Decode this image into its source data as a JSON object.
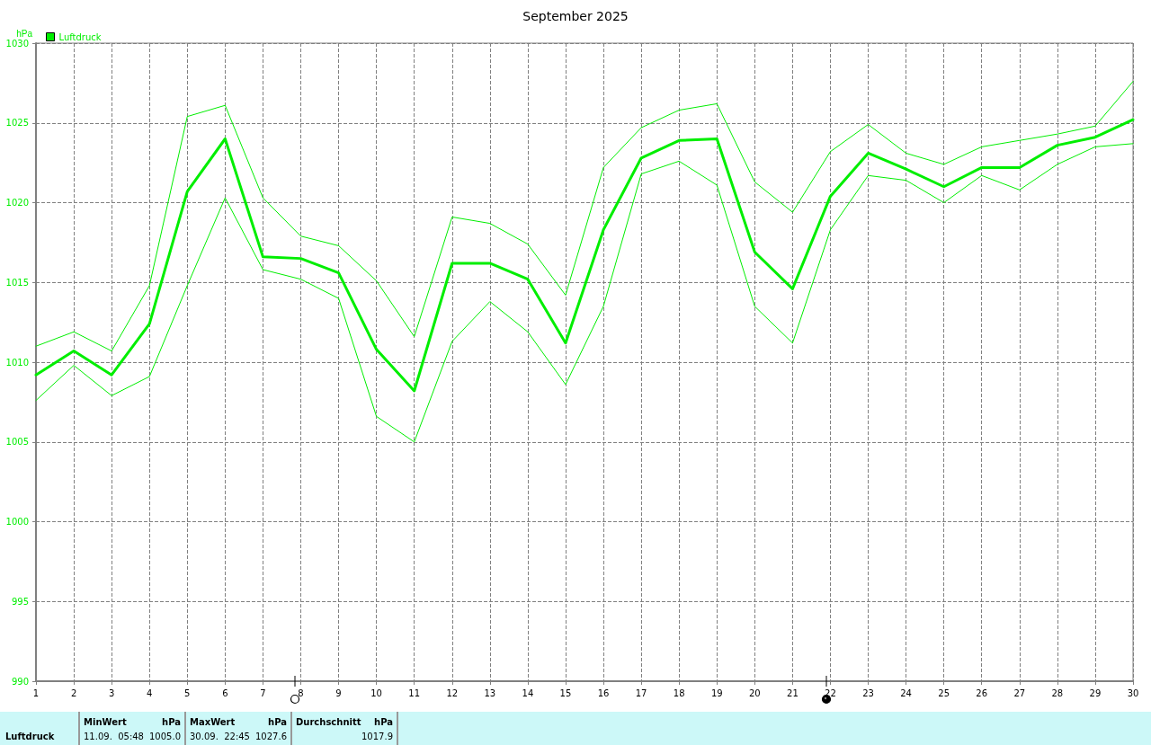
{
  "chart_data": {
    "type": "line",
    "title": "September 2025",
    "ylabel": "hPa",
    "x": [
      1,
      2,
      3,
      4,
      5,
      6,
      7,
      8,
      9,
      10,
      11,
      12,
      13,
      14,
      15,
      16,
      17,
      18,
      19,
      20,
      21,
      22,
      23,
      24,
      25,
      26,
      27,
      28,
      29,
      30
    ],
    "xlim": [
      1,
      30
    ],
    "xticks": [
      1,
      2,
      3,
      4,
      5,
      6,
      7,
      8,
      9,
      10,
      11,
      12,
      13,
      14,
      15,
      16,
      17,
      18,
      19,
      20,
      21,
      22,
      23,
      24,
      25,
      26,
      27,
      28,
      29,
      30
    ],
    "ylim": [
      990,
      1030
    ],
    "yticks": [
      990,
      995,
      1000,
      1005,
      1010,
      1015,
      1020,
      1025,
      1030
    ],
    "series": [
      {
        "name": "Luftdruck",
        "color": "#00ee00",
        "values": [
          1009.2,
          1010.7,
          1009.2,
          1012.4,
          1020.7,
          1024.0,
          1016.6,
          1016.5,
          1015.6,
          1010.8,
          1008.2,
          1016.2,
          1016.2,
          1015.2,
          1011.2,
          1018.3,
          1022.8,
          1023.9,
          1024.0,
          1016.9,
          1014.6,
          1020.4,
          1023.1,
          1022.1,
          1021.0,
          1022.2,
          1022.2,
          1023.6,
          1024.1,
          1025.2
        ]
      },
      {
        "color": "#00ee00",
        "values": [
          1011.0,
          1011.9,
          1010.7,
          1014.8,
          1025.4,
          1026.1,
          1020.3,
          1017.9,
          1017.3,
          1015.1,
          1011.6,
          1019.1,
          1018.7,
          1017.4,
          1014.2,
          1022.2,
          1024.7,
          1025.8,
          1026.2,
          1021.3,
          1019.4,
          1023.2,
          1024.9,
          1023.1,
          1022.4,
          1023.5,
          1023.9,
          1024.3,
          1024.8,
          1027.6
        ]
      },
      {
        "color": "#00ee00",
        "values": [
          1007.6,
          1009.8,
          1007.9,
          1009.1,
          1014.8,
          1020.3,
          1015.8,
          1015.2,
          1014.0,
          1006.6,
          1005.0,
          1011.3,
          1013.8,
          1011.9,
          1008.6,
          1013.5,
          1021.8,
          1022.6,
          1021.1,
          1013.5,
          1011.2,
          1018.3,
          1021.7,
          1021.4,
          1020.0,
          1021.7,
          1020.8,
          1022.4,
          1023.5,
          1023.7
        ]
      }
    ],
    "annotations": [
      "Luftdruck",
      "MinWert",
      "hPa",
      "11.09.  05:48",
      "1005.0",
      "MaxWert",
      "hPa",
      "30.09.  22:45",
      "1027.6",
      "Durchschnitt",
      "hPa",
      "1017.9"
    ],
    "legend": "top left",
    "grid": true,
    "marker": "none",
    "line_style": "solid"
  }
}
